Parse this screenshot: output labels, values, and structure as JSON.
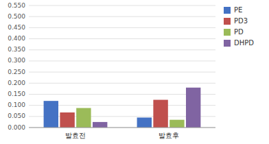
{
  "chart_data": {
    "type": "bar",
    "categories": [
      "발효전",
      "발효후"
    ],
    "series": [
      {
        "name": "PE",
        "color": "#4472C4",
        "values": [
          0.12,
          0.045
        ]
      },
      {
        "name": "PD3",
        "color": "#C0504D",
        "values": [
          0.068,
          0.125
        ]
      },
      {
        "name": "PD",
        "color": "#9BBB59",
        "values": [
          0.088,
          0.035
        ]
      },
      {
        "name": "DHPD",
        "color": "#8064A2",
        "values": [
          0.025,
          0.18
        ]
      }
    ],
    "ylim": [
      0.0,
      0.55
    ],
    "yticks": [
      {
        "value": 0.0,
        "label": "0.000"
      },
      {
        "value": 0.05,
        "label": "0.050"
      },
      {
        "value": 0.1,
        "label": "0.100"
      },
      {
        "value": 0.15,
        "label": "0.150"
      },
      {
        "value": 0.2,
        "label": "0.200"
      },
      {
        "value": 0.25,
        "label": "0.250"
      },
      {
        "value": 0.3,
        "label": "0.300"
      },
      {
        "value": 0.35,
        "label": "0.350"
      },
      {
        "value": 0.4,
        "label": "0.400"
      },
      {
        "value": 0.45,
        "label": "0.450"
      },
      {
        "value": 0.5,
        "label": "0.500"
      },
      {
        "value": 0.55,
        "label": "0.550"
      }
    ],
    "grid": true,
    "legend": "upper right"
  }
}
